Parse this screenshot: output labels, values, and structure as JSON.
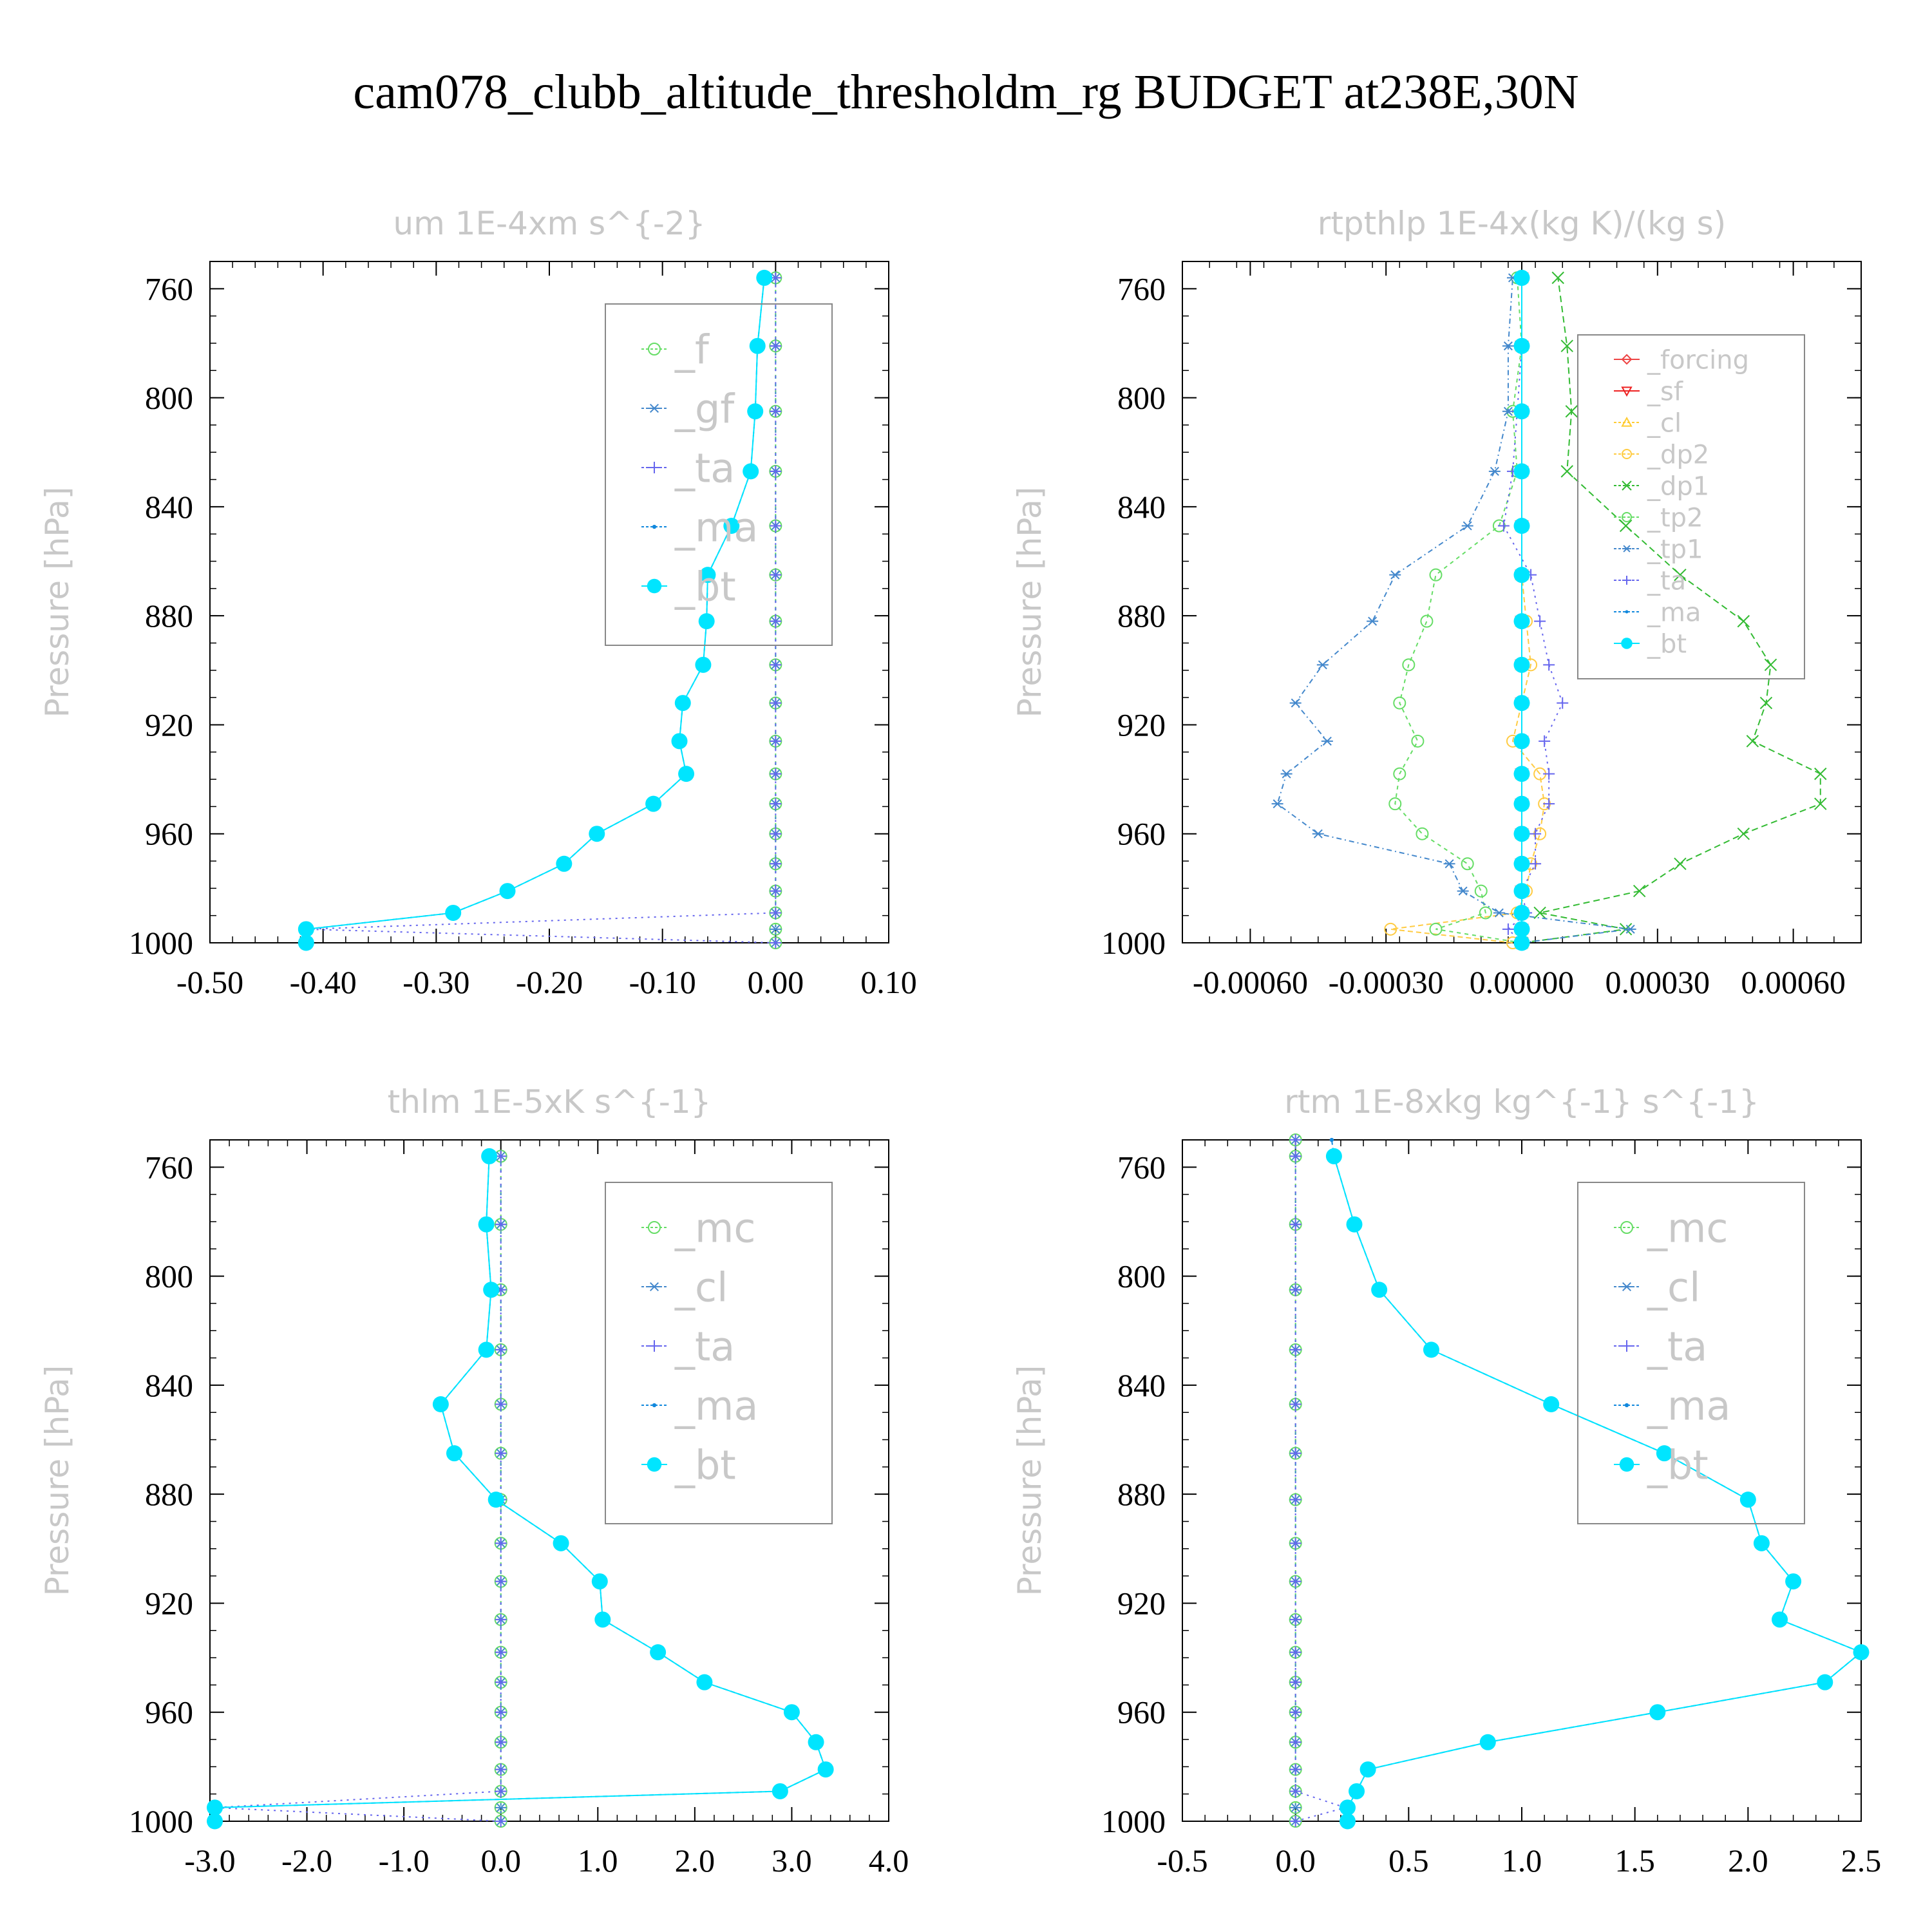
{
  "figure": {
    "title": "cam078_clubb_altitude_thresholdm_rg  BUDGET at238E,30N",
    "ylabel": "Pressure [hPa]"
  },
  "chart_data": [
    {
      "type": "line",
      "title": "um  1E-4xm s^{-2}",
      "ylabel": "Pressure [hPa]",
      "xlim": [
        -0.5,
        0.1
      ],
      "ylim": [
        1000,
        750
      ],
      "xticks": [
        "-0.50",
        "-0.40",
        "-0.30",
        "-0.20",
        "-0.10",
        "0.00",
        "0.10"
      ],
      "xtick_values": [
        -0.5,
        -0.4,
        -0.3,
        -0.2,
        -0.1,
        0.0,
        0.1
      ],
      "yticks": [
        "760",
        "800",
        "840",
        "880",
        "920",
        "960",
        "1000"
      ],
      "ytick_values": [
        760,
        800,
        840,
        880,
        920,
        960,
        1000
      ],
      "legend": {
        "placement": "top-right",
        "font": 62
      },
      "y": [
        1000,
        995,
        989,
        981,
        971,
        960,
        949,
        938,
        926,
        912,
        898,
        882,
        865,
        847,
        827,
        805,
        781,
        756
      ],
      "series": [
        {
          "name": "_f",
          "color": "#66dd66",
          "marker": "circle",
          "dash": "6,6",
          "values": [
            0,
            0,
            0,
            0,
            0,
            0,
            0,
            0,
            0,
            0,
            0,
            0,
            0,
            0,
            0,
            0,
            0,
            0
          ]
        },
        {
          "name": "_gf",
          "color": "#4488cc",
          "marker": "star",
          "dash": "4,8",
          "values": [
            0,
            0,
            0,
            0,
            0,
            0,
            0,
            0,
            0,
            0,
            0,
            0,
            0,
            0,
            0,
            0,
            0,
            0
          ]
        },
        {
          "name": "_ta",
          "color": "#6666ee",
          "marker": "plus",
          "dash": "3,7",
          "values": [
            0.0,
            -0.415,
            0,
            0,
            0,
            0,
            0,
            0,
            0,
            0,
            0,
            0,
            0,
            0,
            0,
            0,
            0,
            0
          ]
        },
        {
          "name": "_ma",
          "color": "#1188dd",
          "marker": "dot",
          "dash": "7,5",
          "values": [
            -0.415,
            -0.415,
            -0.285,
            -0.237,
            -0.187,
            -0.158,
            -0.108,
            -0.079,
            -0.085,
            -0.082,
            -0.064,
            -0.061,
            -0.06,
            -0.039,
            -0.022,
            -0.018,
            -0.016,
            -0.01
          ]
        },
        {
          "name": "_bt",
          "color": "#00e5ff",
          "marker": "bigdot",
          "dash": "",
          "values": [
            -0.415,
            -0.415,
            -0.285,
            -0.237,
            -0.187,
            -0.158,
            -0.108,
            -0.079,
            -0.085,
            -0.082,
            -0.064,
            -0.061,
            -0.06,
            -0.039,
            -0.022,
            -0.018,
            -0.016,
            -0.01
          ]
        }
      ]
    },
    {
      "type": "line",
      "title": "rtpthlp  1E-4x(kg K)/(kg s)",
      "ylabel": "Pressure [hPa]",
      "xlim": [
        -0.00075,
        0.00075
      ],
      "ylim": [
        1000,
        750
      ],
      "xticks": [
        "-0.00060",
        "-0.00030",
        "0.00000",
        "0.00030",
        "0.00060"
      ],
      "xtick_values": [
        -0.0006,
        -0.0003,
        0.0,
        0.0003,
        0.0006
      ],
      "yticks": [
        "760",
        "800",
        "840",
        "880",
        "920",
        "960",
        "1000"
      ],
      "ytick_values": [
        760,
        800,
        840,
        880,
        920,
        960,
        1000
      ],
      "legend": {
        "placement": "top-right",
        "font": 40
      },
      "y": [
        1000,
        995,
        989,
        981,
        971,
        960,
        949,
        938,
        926,
        912,
        898,
        882,
        865,
        847,
        827,
        805,
        781,
        756
      ],
      "series": [
        {
          "name": "_forcing",
          "color": "#ee4444",
          "marker": "diamond",
          "dash": "",
          "values": [
            0,
            0,
            0,
            0,
            0,
            0,
            0,
            0,
            0,
            0,
            0,
            0,
            0,
            0,
            0,
            0,
            0,
            0
          ]
        },
        {
          "name": "_sf",
          "color": "#ee2222",
          "marker": "tri-down",
          "dash": "",
          "values": [
            0,
            0,
            0,
            0,
            0,
            0,
            0,
            0,
            0,
            0,
            0,
            0,
            0,
            0,
            0,
            0,
            0,
            0
          ]
        },
        {
          "name": "_cl",
          "color": "#ffcc33",
          "marker": "tri-up",
          "dash": "6,6",
          "values": [
            0,
            0,
            0,
            0,
            0,
            0,
            0,
            0,
            0,
            0,
            0,
            0,
            0,
            0,
            0,
            0,
            0,
            0
          ]
        },
        {
          "name": "_dp2",
          "color": "#ffcc44",
          "marker": "circle",
          "dash": "8,5",
          "values": [
            -2e-05,
            -0.00029,
            -1e-05,
            1e-05,
            2e-05,
            4e-05,
            5e-05,
            4e-05,
            -2e-05,
            0.0,
            2e-05,
            1e-05,
            0.0,
            0.0,
            0.0,
            0.0,
            0.0,
            0.0
          ]
        },
        {
          "name": "_dp1",
          "color": "#33bb33",
          "marker": "cross",
          "dash": "10,6",
          "values": [
            0.0,
            0.00023,
            4e-05,
            0.00026,
            0.00035,
            0.00049,
            0.00066,
            0.00066,
            0.00051,
            0.00054,
            0.00055,
            0.00049,
            0.00035,
            0.00023,
            0.0001,
            0.00011,
            0.0001,
            8e-05
          ]
        },
        {
          "name": "_tp2",
          "color": "#66dd66",
          "marker": "circle",
          "dash": "6,6",
          "values": [
            0.0,
            -0.00019,
            -8e-05,
            -9e-05,
            -0.00012,
            -0.00022,
            -0.00028,
            -0.00027,
            -0.00023,
            -0.00027,
            -0.00025,
            -0.00021,
            -0.00019,
            -5e-05,
            -1e-05,
            -2e-05,
            0.0,
            -1e-05
          ]
        },
        {
          "name": "_tp1",
          "color": "#4488cc",
          "marker": "star",
          "dash": "8,5,2,5",
          "values": [
            0.0,
            0.00024,
            -5e-05,
            -0.00013,
            -0.00016,
            -0.00045,
            -0.00054,
            -0.00052,
            -0.00043,
            -0.0005,
            -0.00044,
            -0.00033,
            -0.00028,
            -0.00012,
            -6e-05,
            -3e-05,
            -3e-05,
            -2e-05
          ]
        },
        {
          "name": "_ta",
          "color": "#6666ee",
          "marker": "plus",
          "dash": "3,7",
          "values": [
            0.0,
            -3e-05,
            1e-05,
            0.0,
            3e-05,
            3e-05,
            6e-05,
            6e-05,
            5e-05,
            9e-05,
            6e-05,
            4e-05,
            2e-05,
            -4e-05,
            -2e-05,
            -1e-05,
            0.0,
            0.0
          ]
        },
        {
          "name": "_ma",
          "color": "#1188dd",
          "marker": "dot",
          "dash": "7,5",
          "values": [
            0,
            0,
            0,
            0,
            0,
            0,
            0,
            0,
            0,
            0,
            0,
            0,
            0,
            0,
            0,
            0,
            0,
            0
          ]
        },
        {
          "name": "_bt",
          "color": "#00e5ff",
          "marker": "bigdot",
          "dash": "",
          "values": [
            0,
            0,
            0,
            0,
            0,
            0,
            0,
            0,
            0,
            0,
            0,
            0,
            0,
            0,
            0,
            0,
            0,
            0
          ]
        }
      ]
    },
    {
      "type": "line",
      "title": "thlm  1E-5xK s^{-1}",
      "ylabel": "Pressure [hPa]",
      "xlim": [
        -3.0,
        4.0
      ],
      "ylim": [
        1000,
        750
      ],
      "xticks": [
        "-3.0",
        "-2.0",
        "-1.0",
        "0.0",
        "1.0",
        "2.0",
        "3.0",
        "4.0"
      ],
      "xtick_values": [
        -3.0,
        -2.0,
        -1.0,
        0.0,
        1.0,
        2.0,
        3.0,
        4.0
      ],
      "yticks": [
        "760",
        "800",
        "840",
        "880",
        "920",
        "960",
        "1000"
      ],
      "ytick_values": [
        760,
        800,
        840,
        880,
        920,
        960,
        1000
      ],
      "legend": {
        "placement": "top-right",
        "font": 62
      },
      "y": [
        1000,
        995,
        989,
        981,
        971,
        960,
        949,
        938,
        926,
        912,
        898,
        882,
        865,
        847,
        827,
        805,
        781,
        756
      ],
      "series": [
        {
          "name": "_mc",
          "color": "#66dd66",
          "marker": "circle",
          "dash": "6,6",
          "values": [
            0,
            0,
            0,
            0,
            0,
            0,
            0,
            0,
            0,
            0,
            0,
            0,
            0,
            0,
            0,
            0,
            0,
            0
          ]
        },
        {
          "name": "_cl",
          "color": "#4488cc",
          "marker": "star",
          "dash": "4,8",
          "values": [
            0,
            0,
            0,
            0,
            0,
            0,
            0,
            0,
            0,
            0,
            0,
            0,
            0,
            0,
            0,
            0,
            0,
            0
          ]
        },
        {
          "name": "_ta",
          "color": "#6666ee",
          "marker": "plus",
          "dash": "3,7",
          "values": [
            0.0,
            -2.95,
            0,
            0,
            0,
            0,
            0,
            0,
            0,
            0,
            0,
            0,
            0,
            0,
            0,
            0,
            0,
            0
          ]
        },
        {
          "name": "_ma",
          "color": "#1188dd",
          "marker": "dot",
          "dash": "7,5",
          "values": [
            -2.95,
            -2.95,
            2.88,
            3.35,
            3.25,
            3.0,
            2.1,
            1.62,
            1.05,
            1.02,
            0.62,
            -0.05,
            -0.48,
            -0.62,
            -0.15,
            -0.1,
            -0.15,
            -0.12
          ]
        },
        {
          "name": "_bt",
          "color": "#00e5ff",
          "marker": "bigdot",
          "dash": "",
          "values": [
            -2.95,
            -2.95,
            2.88,
            3.35,
            3.25,
            3.0,
            2.1,
            1.62,
            1.05,
            1.02,
            0.62,
            -0.05,
            -0.48,
            -0.62,
            -0.15,
            -0.1,
            -0.15,
            -0.12
          ]
        }
      ]
    },
    {
      "type": "line",
      "title": "rtm  1E-8xkg kg^{-1} s^{-1}",
      "ylabel": "Pressure [hPa]",
      "xlim": [
        -0.5,
        2.5
      ],
      "ylim": [
        1000,
        750
      ],
      "xticks": [
        "-0.5",
        "0.0",
        "0.5",
        "1.0",
        "1.5",
        "2.0",
        "2.5"
      ],
      "xtick_values": [
        -0.5,
        0.0,
        0.5,
        1.0,
        1.5,
        2.0,
        2.5
      ],
      "yticks": [
        "760",
        "800",
        "840",
        "880",
        "920",
        "960",
        "1000"
      ],
      "ytick_values": [
        760,
        800,
        840,
        880,
        920,
        960,
        1000
      ],
      "legend": {
        "placement": "top-right",
        "font": 62
      },
      "y": [
        1000,
        995,
        989,
        981,
        971,
        960,
        949,
        938,
        926,
        912,
        898,
        882,
        865,
        847,
        827,
        805,
        781,
        756,
        750
      ],
      "series": [
        {
          "name": "_mc",
          "color": "#66dd66",
          "marker": "circle",
          "dash": "6,6",
          "values": [
            0,
            0,
            0,
            0,
            0,
            0,
            0,
            0,
            0,
            0,
            0,
            0,
            0,
            0,
            0,
            0,
            0,
            0,
            0
          ]
        },
        {
          "name": "_cl",
          "color": "#4488cc",
          "marker": "star",
          "dash": "4,8",
          "values": [
            0,
            0,
            0,
            0,
            0,
            0,
            0,
            0,
            0,
            0,
            0,
            0,
            0,
            0,
            0,
            0,
            0,
            0,
            0
          ]
        },
        {
          "name": "_ta",
          "color": "#6666ee",
          "marker": "plus",
          "dash": "3,7",
          "values": [
            0.0,
            0.22,
            0,
            0,
            0,
            0,
            0,
            0,
            0,
            0,
            0,
            0,
            0,
            0,
            0,
            0,
            0,
            0,
            0
          ]
        },
        {
          "name": "_ma",
          "color": "#1188dd",
          "marker": "dot",
          "dash": "7,5",
          "values": [
            0.23,
            0.23,
            0.27,
            0.32,
            0.85,
            1.6,
            2.34,
            2.5,
            2.14,
            2.2,
            2.06,
            2.0,
            1.63,
            1.13,
            0.6,
            0.37,
            0.26,
            0.17,
            0.16
          ]
        },
        {
          "name": "_bt",
          "color": "#00e5ff",
          "marker": "bigdot",
          "dash": "",
          "values": [
            0.23,
            0.23,
            0.27,
            0.32,
            0.85,
            1.6,
            2.34,
            2.5,
            2.14,
            2.2,
            2.06,
            2.0,
            1.63,
            1.13,
            0.6,
            0.37,
            0.26,
            0.17,
            null
          ]
        }
      ]
    }
  ]
}
